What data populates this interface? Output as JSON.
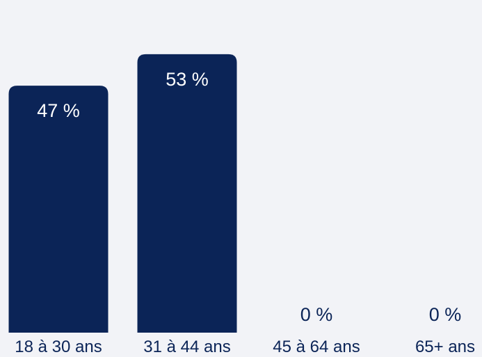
{
  "chart_data": {
    "type": "bar",
    "categories": [
      "18 à 30 ans",
      "31 à 44 ans",
      "45 à 64 ans",
      "65+ ans"
    ],
    "values": [
      47,
      53,
      0,
      0
    ],
    "value_labels": [
      "47 %",
      "53 %",
      "0 %",
      "0 %"
    ],
    "title": "",
    "xlabel": "",
    "ylabel": "",
    "ylim": [
      0,
      55
    ],
    "grid": false,
    "legend": "none",
    "colors": {
      "bar": "#0b2457",
      "label_inside": "#ffffff",
      "label_outside": "#0b2457",
      "background": "#f2f3f7"
    }
  }
}
